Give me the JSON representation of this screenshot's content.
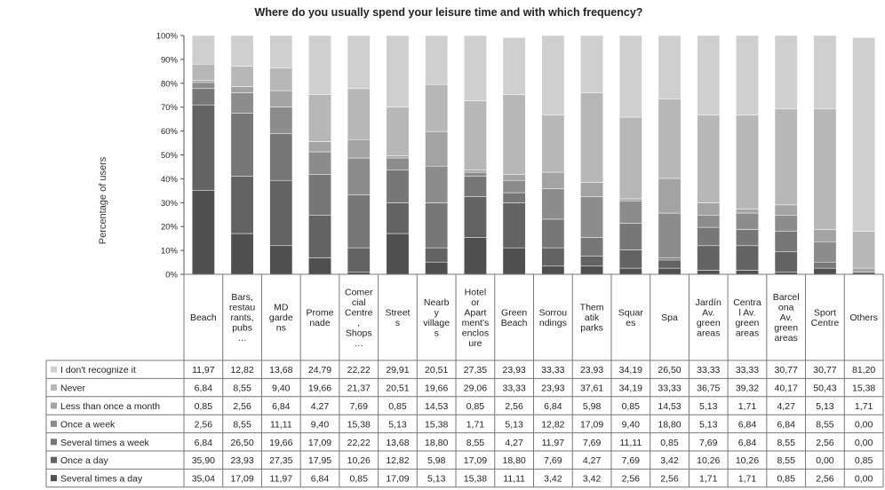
{
  "chart_data": {
    "type": "bar",
    "stacked": true,
    "title": "Where do you usually spend your leisure time and with which frequency?",
    "ylabel": "Percentage of users",
    "xlabel": "",
    "ylim": [
      0,
      100
    ],
    "y_ticks": [
      "0%",
      "10%",
      "20%",
      "30%",
      "40%",
      "50%",
      "60%",
      "70%",
      "80%",
      "90%",
      "100%"
    ],
    "grid": false,
    "legend_placement": "data-table-left",
    "categories": [
      "Beach",
      "Bars, restau rants, pubs …",
      "MD garde ns",
      "Prome nade",
      "Comer cial Centre , Shops …",
      "Street s",
      "Nearb y village s",
      "Hotel or Apart ment's enclos ure",
      "Green Beach",
      "Sorrou ndings",
      "Them atik parks",
      "Squar es",
      "Spa",
      "Jardín Av. green areas",
      "Centra l Av. green areas",
      "Barcel ona Av. green areas",
      "Sport Centre",
      "Others"
    ],
    "category_lines": [
      [
        "Beach"
      ],
      [
        "Bars,",
        "restau",
        "rants,",
        "pubs",
        "…"
      ],
      [
        "MD",
        "garde",
        "ns"
      ],
      [
        "Prome",
        "nade"
      ],
      [
        "Comer",
        "cial",
        "Centre",
        ",",
        "Shops",
        "…"
      ],
      [
        "Street",
        "s"
      ],
      [
        "Nearb",
        "y",
        "village",
        "s"
      ],
      [
        "Hotel",
        "or",
        "Apart",
        "ment's",
        "enclos",
        "ure"
      ],
      [
        "Green",
        "Beach"
      ],
      [
        "Sorrou",
        "ndings"
      ],
      [
        "Them",
        "atik",
        "parks"
      ],
      [
        "Squar",
        "es"
      ],
      [
        "Spa"
      ],
      [
        "Jardín",
        "Av.",
        "green",
        "areas"
      ],
      [
        "Centra",
        "l Av.",
        "green",
        "areas"
      ],
      [
        "Barcel",
        "ona",
        "Av.",
        "green",
        "areas"
      ],
      [
        "Sport",
        "Centre"
      ],
      [
        "Others"
      ]
    ],
    "series": [
      {
        "name": "I don't recognize it",
        "color": "#cfcfcf",
        "values": [
          11.97,
          12.82,
          13.68,
          24.79,
          22.22,
          29.91,
          20.51,
          27.35,
          23.93,
          33.33,
          23.93,
          34.19,
          26.5,
          33.33,
          33.33,
          30.77,
          30.77,
          81.2
        ],
        "labels": [
          "11,97",
          "12,82",
          "13,68",
          "24,79",
          "22,22",
          "29,91",
          "20,51",
          "27,35",
          "23,93",
          "33,33",
          "23,93",
          "34,19",
          "26,50",
          "33,33",
          "33,33",
          "30,77",
          "30,77",
          "81,20"
        ]
      },
      {
        "name": "Never",
        "color": "#b7b7b7",
        "values": [
          6.84,
          8.55,
          9.4,
          19.66,
          21.37,
          20.51,
          19.66,
          29.06,
          33.33,
          23.93,
          37.61,
          34.19,
          33.33,
          36.75,
          39.32,
          40.17,
          50.43,
          15.38
        ],
        "labels": [
          "6,84",
          "8,55",
          "9,40",
          "19,66",
          "21,37",
          "20,51",
          "19,66",
          "29,06",
          "33,33",
          "23,93",
          "37,61",
          "34,19",
          "33,33",
          "36,75",
          "39,32",
          "40,17",
          "50,43",
          "15,38"
        ]
      },
      {
        "name": "Less than once a month",
        "color": "#a3a3a3",
        "values": [
          0.85,
          2.56,
          6.84,
          4.27,
          7.69,
          0.85,
          14.53,
          0.85,
          2.56,
          6.84,
          5.98,
          0.85,
          14.53,
          5.13,
          1.71,
          4.27,
          5.13,
          1.71
        ],
        "labels": [
          "0,85",
          "2,56",
          "6,84",
          "4,27",
          "7,69",
          "0,85",
          "14,53",
          "0,85",
          "2,56",
          "6,84",
          "5,98",
          "0,85",
          "14,53",
          "5,13",
          "1,71",
          "4,27",
          "5,13",
          "1,71"
        ]
      },
      {
        "name": "Once a week",
        "color": "#8c8c8c",
        "values": [
          2.56,
          8.55,
          11.11,
          9.4,
          15.38,
          5.13,
          15.38,
          1.71,
          5.13,
          12.82,
          17.09,
          9.4,
          18.8,
          5.13,
          6.84,
          6.84,
          8.55,
          0.0
        ],
        "labels": [
          "2,56",
          "8,55",
          "11,11",
          "9,40",
          "15,38",
          "5,13",
          "15,38",
          "1,71",
          "5,13",
          "12,82",
          "17,09",
          "9,40",
          "18,80",
          "5,13",
          "6,84",
          "6,84",
          "8,55",
          "0,00"
        ]
      },
      {
        "name": "Several times a week",
        "color": "#777777",
        "values": [
          6.84,
          26.5,
          19.66,
          17.09,
          22.22,
          13.68,
          18.8,
          8.55,
          4.27,
          11.97,
          7.69,
          11.11,
          0.85,
          7.69,
          6.84,
          8.55,
          2.56,
          0.0
        ],
        "labels": [
          "6,84",
          "26,50",
          "19,66",
          "17,09",
          "22,22",
          "13,68",
          "18,80",
          "8,55",
          "4,27",
          "11,97",
          "7,69",
          "11,11",
          "0,85",
          "7,69",
          "6,84",
          "8,55",
          "2,56",
          "0,00"
        ]
      },
      {
        "name": "Once a day",
        "color": "#636363",
        "values": [
          35.9,
          23.93,
          27.35,
          17.95,
          10.26,
          12.82,
          5.98,
          17.09,
          18.8,
          7.69,
          4.27,
          7.69,
          3.42,
          10.26,
          10.26,
          8.55,
          0.0,
          0.85
        ],
        "labels": [
          "35,90",
          "23,93",
          "27,35",
          "17,95",
          "10,26",
          "12,82",
          "5,98",
          "17,09",
          "18,80",
          "7,69",
          "4,27",
          "7,69",
          "3,42",
          "10,26",
          "10,26",
          "8,55",
          "0,00",
          "0,85"
        ]
      },
      {
        "name": "Several times a day",
        "color": "#4f4f4f",
        "values": [
          35.04,
          17.09,
          11.97,
          6.84,
          0.85,
          17.09,
          5.13,
          15.38,
          11.11,
          3.42,
          3.42,
          2.56,
          2.56,
          1.71,
          1.71,
          0.85,
          2.56,
          0.0
        ],
        "labels": [
          "35,04",
          "17,09",
          "11,97",
          "6,84",
          "0,85",
          "17,09",
          "5,13",
          "15,38",
          "11,11",
          "3,42",
          "3,42",
          "2,56",
          "2,56",
          "1,71",
          "1,71",
          "0,85",
          "2,56",
          "0,00"
        ]
      }
    ]
  }
}
